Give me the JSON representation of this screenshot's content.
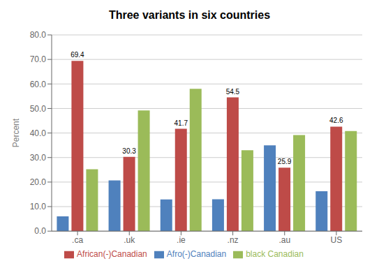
{
  "chart_data": {
    "type": "bar",
    "title": "Three variants in six countries",
    "categories": [
      ".ca",
      ".uk",
      ".ie",
      ".nz",
      ".au",
      "US"
    ],
    "series": [
      {
        "name": "Afro(-)Canadian",
        "values": [
          6.0,
          20.7,
          12.9,
          13.0,
          35.0,
          16.3
        ],
        "color": "#4F81BD"
      },
      {
        "name": "African(-)Canadian",
        "values": [
          69.4,
          30.3,
          41.7,
          54.5,
          25.9,
          42.6
        ],
        "color": "#BE4B48",
        "data_labels": true
      },
      {
        "name": "black Canadian",
        "values": [
          25.2,
          49.2,
          58.0,
          33.0,
          39.2,
          40.8
        ],
        "color": "#9BBB59"
      }
    ],
    "ylabel": "Percent",
    "ylim": [
      0,
      80
    ],
    "yticks": [
      {
        "value": 0,
        "label": "0.0"
      },
      {
        "value": 10,
        "label": "10.0"
      },
      {
        "value": 20,
        "label": "20.0"
      },
      {
        "value": 30,
        "label": "30.0"
      },
      {
        "value": 40,
        "label": "40.0"
      },
      {
        "value": 50,
        "label": "50.0"
      },
      {
        "value": 60,
        "label": "60.0"
      },
      {
        "value": 70,
        "label": "70.0"
      },
      {
        "value": 80,
        "label": "80.0"
      }
    ],
    "grid": true,
    "legend": "bottom"
  }
}
